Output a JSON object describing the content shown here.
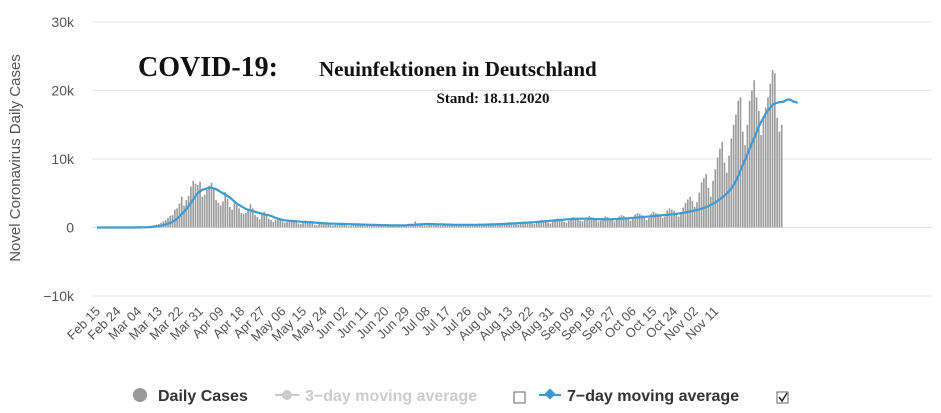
{
  "chart_data": {
    "type": "bar",
    "title": "COVID-19:",
    "subtitle": "Neuinfektionen in Deutschland",
    "stand": "Stand: 18.11.2020",
    "ylabel": "Novel Coronavirus Daily Cases",
    "xlabel": "",
    "ylim": [
      -10000,
      30000
    ],
    "y_ticks": [
      {
        "value": 30000,
        "label": "30k"
      },
      {
        "value": 20000,
        "label": "20k"
      },
      {
        "value": 10000,
        "label": "10k"
      },
      {
        "value": 0,
        "label": "0"
      },
      {
        "value": -10000,
        "label": "−10k"
      }
    ],
    "x_ticks": [
      "Feb 15",
      "Feb 24",
      "Mar 04",
      "Mar 13",
      "Mar 22",
      "Mar 31",
      "Apr 09",
      "Apr 18",
      "Apr 27",
      "May 06",
      "May 15",
      "May 24",
      "Jun 02",
      "Jun 11",
      "Jun 20",
      "Jun 29",
      "Jul 08",
      "Jul 17",
      "Jul 26",
      "Aug 04",
      "Aug 13",
      "Aug 22",
      "Aug 31",
      "Sep 09",
      "Sep 18",
      "Sep 27",
      "Oct 06",
      "Oct 15",
      "Oct 24",
      "Nov 02",
      "Nov 11"
    ],
    "grid": true,
    "legend_position": "bottom",
    "legend": [
      {
        "name": "Daily Cases",
        "active": true,
        "marker": "circle",
        "color": "#999999"
      },
      {
        "name": "3−day moving average",
        "active": false,
        "marker": "line-circle",
        "color": "#cccccc"
      },
      {
        "name": "7−day moving average",
        "active": true,
        "marker": "line-diamond",
        "color": "#3d9bd2"
      }
    ],
    "checkboxes": [
      {
        "for": "3−day moving average",
        "checked": false
      },
      {
        "for": "7−day moving average",
        "checked": true
      }
    ],
    "series": [
      {
        "name": "Daily Cases",
        "color": "#999999",
        "values": [
          0,
          0,
          0,
          0,
          0,
          0,
          0,
          0,
          0,
          0,
          0,
          0,
          0,
          0,
          5,
          5,
          20,
          30,
          40,
          50,
          70,
          100,
          130,
          140,
          240,
          350,
          420,
          510,
          710,
          900,
          1100,
          1400,
          1700,
          1800,
          2600,
          2800,
          3500,
          4500,
          3200,
          4000,
          4600,
          6000,
          6800,
          6400,
          6200,
          6700,
          4500,
          4800,
          5500,
          6100,
          6500,
          5800,
          4000,
          3600,
          3200,
          3800,
          5200,
          4200,
          3000,
          2600,
          3900,
          3300,
          2800,
          2100,
          2000,
          2100,
          2500,
          3400,
          2800,
          1800,
          1500,
          1200,
          1900,
          2300,
          1800,
          1300,
          1100,
          800,
          1100,
          1400,
          1300,
          900,
          700,
          800,
          1000,
          1100,
          1100,
          900,
          600,
          500,
          800,
          1000,
          900,
          800,
          600,
          400,
          300,
          600,
          800,
          700,
          600,
          500,
          400,
          300,
          400,
          600,
          500,
          500,
          400,
          300,
          200,
          300,
          400,
          500,
          400,
          300,
          300,
          200,
          300,
          400,
          400,
          400,
          300,
          300,
          200,
          400,
          500,
          500,
          400,
          300,
          200,
          200,
          300,
          400,
          400,
          300,
          200,
          200,
          500,
          900,
          600,
          500,
          400,
          300,
          300,
          400,
          600,
          600,
          500,
          400,
          300,
          300,
          400,
          500,
          600,
          500,
          400,
          300,
          300,
          400,
          500,
          500,
          400,
          300,
          300,
          400,
          500,
          600,
          500,
          400,
          300,
          400,
          500,
          600,
          600,
          500,
          400,
          400,
          500,
          700,
          800,
          700,
          600,
          500,
          400,
          600,
          800,
          900,
          800,
          700,
          600,
          500,
          700,
          1000,
          1100,
          1000,
          900,
          700,
          600,
          900,
          1200,
          1300,
          1200,
          1000,
          800,
          700,
          1000,
          1400,
          1500,
          1400,
          1300,
          1000,
          900,
          1100,
          1500,
          1700,
          1500,
          1300,
          1100,
          900,
          1000,
          1400,
          1600,
          1500,
          1300,
          1100,
          900,
          1100,
          1600,
          1800,
          1700,
          1500,
          1200,
          1000,
          1300,
          1900,
          2100,
          2000,
          1800,
          1400,
          1100,
          1400,
          2000,
          2300,
          2100,
          2000,
          1700,
          1400,
          1600,
          2500,
          2800,
          2600,
          2400,
          2000,
          1600,
          2000,
          2900,
          3600,
          4100,
          4500,
          3900,
          3000,
          3700,
          5100,
          6600,
          7200,
          7800,
          5800,
          4500,
          6800,
          8500,
          10200,
          11500,
          12500,
          9500,
          8000,
          10500,
          13000,
          15000,
          16500,
          18500,
          19000,
          14000,
          12000,
          15000,
          18500,
          20000,
          21500,
          19000,
          17000,
          13500,
          16000,
          17500,
          19000,
          21000,
          23000,
          22500,
          16000,
          14000,
          15000
        ]
      },
      {
        "name": "7−day moving average",
        "color": "#3d9bd2",
        "values": [
          0,
          0,
          0,
          0,
          0,
          0,
          0,
          0,
          0,
          0,
          0,
          0,
          0,
          0,
          1,
          2,
          4,
          8,
          12,
          18,
          25,
          36,
          50,
          65,
          85,
          120,
          160,
          210,
          270,
          350,
          450,
          560,
          700,
          850,
          1050,
          1300,
          1600,
          1950,
          2300,
          2700,
          3100,
          3600,
          4100,
          4600,
          5000,
          5300,
          5500,
          5600,
          5700,
          5800,
          5800,
          5700,
          5600,
          5400,
          5200,
          5000,
          4800,
          4600,
          4400,
          4100,
          3800,
          3500,
          3300,
          3100,
          2900,
          2700,
          2600,
          2500,
          2400,
          2300,
          2200,
          2100,
          2000,
          1900,
          1850,
          1800,
          1700,
          1550,
          1400,
          1300,
          1200,
          1100,
          1050,
          1000,
          980,
          960,
          940,
          900,
          870,
          850,
          830,
          810,
          790,
          770,
          750,
          720,
          690,
          670,
          650,
          630,
          610,
          590,
          570,
          560,
          550,
          540,
          530,
          520,
          510,
          500,
          490,
          480,
          470,
          460,
          450,
          440,
          430,
          420,
          410,
          400,
          390,
          380,
          370,
          360,
          350,
          340,
          330,
          320,
          310,
          300,
          300,
          300,
          300,
          310,
          320,
          340,
          360,
          380,
          400,
          420,
          440,
          460,
          480,
          500,
          510,
          510,
          500,
          490,
          480,
          470,
          460,
          450,
          440,
          430,
          420,
          410,
          400,
          400,
          400,
          400,
          400,
          400,
          400,
          400,
          400,
          400,
          400,
          400,
          410,
          420,
          430,
          440,
          450,
          460,
          470,
          480,
          490,
          500,
          520,
          540,
          560,
          580,
          600,
          620,
          640,
          660,
          680,
          700,
          720,
          740,
          760,
          780,
          800,
          830,
          860,
          890,
          920,
          950,
          980,
          1010,
          1040,
          1070,
          1100,
          1130,
          1160,
          1190,
          1210,
          1230,
          1250,
          1260,
          1270,
          1280,
          1280,
          1280,
          1270,
          1260,
          1250,
          1240,
          1230,
          1220,
          1210,
          1200,
          1200,
          1200,
          1200,
          1210,
          1220,
          1240,
          1260,
          1280,
          1300,
          1320,
          1340,
          1370,
          1400,
          1430,
          1460,
          1490,
          1520,
          1550,
          1580,
          1610,
          1640,
          1670,
          1700,
          1730,
          1760,
          1790,
          1820,
          1850,
          1880,
          1920,
          1960,
          2000,
          2050,
          2100,
          2150,
          2200,
          2260,
          2330,
          2400,
          2480,
          2560,
          2650,
          2750,
          2860,
          2980,
          3120,
          3280,
          3460,
          3660,
          3880,
          4120,
          4380,
          4650,
          4950,
          5300,
          5700,
          6200,
          6800,
          7500,
          8300,
          9100,
          9900,
          10700,
          11500,
          12300,
          13100,
          13900,
          14700,
          15400,
          16000,
          16600,
          17100,
          17500,
          17900,
          18100,
          18200,
          18300,
          18300,
          18400,
          18600,
          18700,
          18600,
          18400,
          18300,
          18200
        ]
      }
    ]
  }
}
